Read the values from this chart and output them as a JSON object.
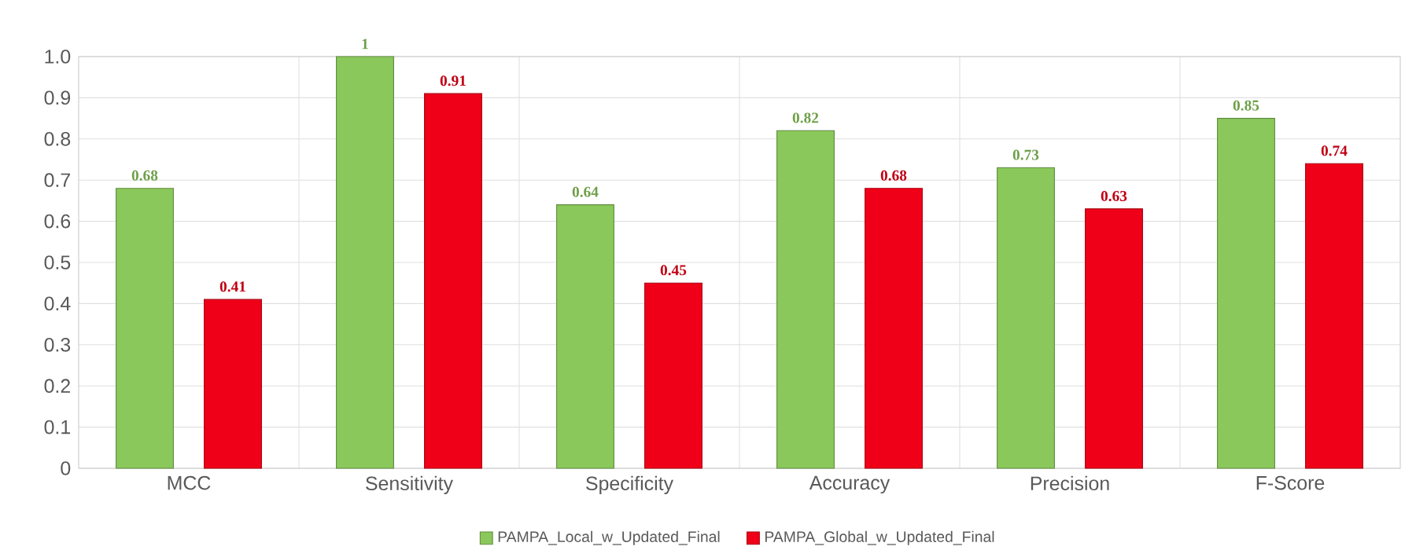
{
  "chart_data": {
    "type": "bar",
    "categories": [
      "MCC",
      "Sensitivity",
      "Specificity",
      "Accuracy",
      "Precision",
      "F-Score"
    ],
    "series": [
      {
        "name": "PAMPA_Local_w_Updated_Final",
        "color": "#8bc85b",
        "values": [
          0.68,
          1,
          0.64,
          0.82,
          0.73,
          0.85
        ]
      },
      {
        "name": "PAMPA_Global_w_Updated_Final",
        "color": "#f00018",
        "values": [
          0.41,
          0.91,
          0.45,
          0.68,
          0.63,
          0.74
        ]
      }
    ],
    "ylim": [
      0,
      1.0
    ],
    "yticks": [
      {
        "value": 0,
        "label": "0"
      },
      {
        "value": 0.1,
        "label": "0.1"
      },
      {
        "value": 0.2,
        "label": "0.2"
      },
      {
        "value": 0.3,
        "label": "0.3"
      },
      {
        "value": 0.4,
        "label": "0.4"
      },
      {
        "value": 0.5,
        "label": "0.5"
      },
      {
        "value": 0.6,
        "label": "0.6"
      },
      {
        "value": 0.7,
        "label": "0.7"
      },
      {
        "value": 0.8,
        "label": "0.8"
      },
      {
        "value": 0.9,
        "label": "0.9"
      },
      {
        "value": 1.0,
        "label": "1.0"
      }
    ],
    "grid": true,
    "legend": "bottom",
    "data_labels": true
  }
}
